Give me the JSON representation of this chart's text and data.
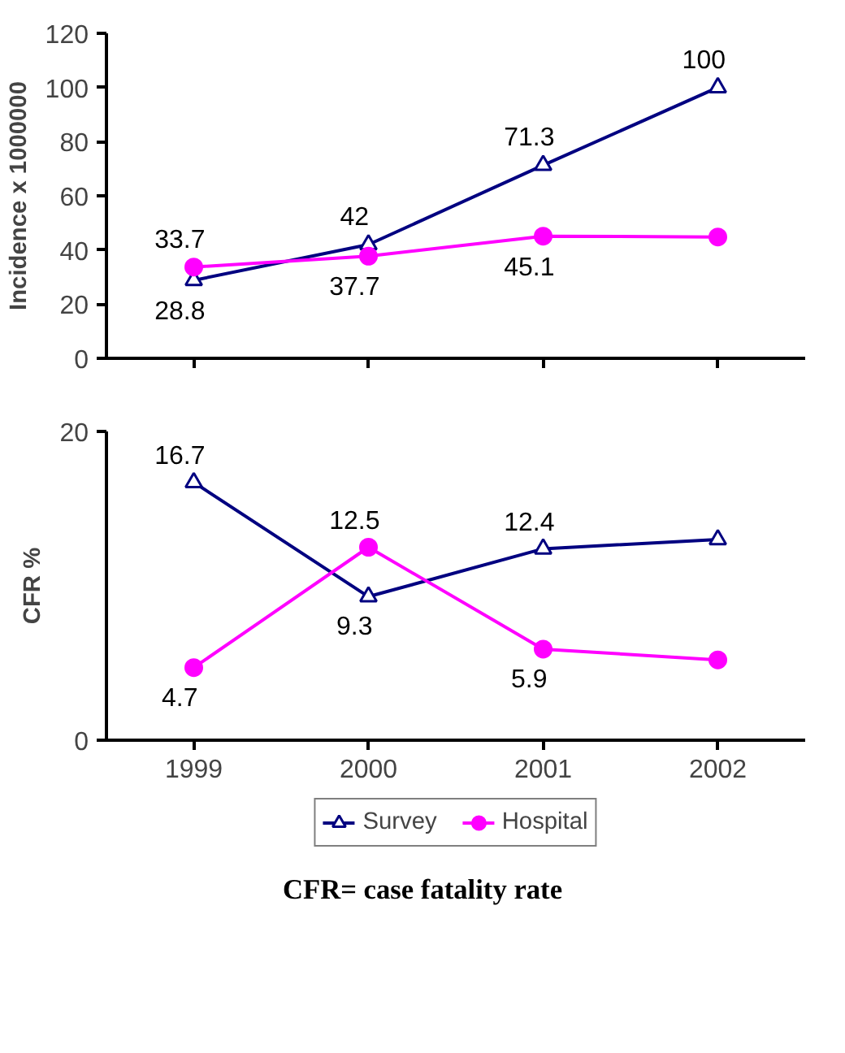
{
  "chart_data": [
    {
      "type": "line",
      "categories": [
        "1999",
        "2000",
        "2001",
        "2002"
      ],
      "ylabel": "Incidence x 1000000",
      "ylim": [
        0,
        120
      ],
      "yticks": [
        0,
        20,
        40,
        60,
        80,
        100,
        120
      ],
      "tick_labels": "y",
      "grid": false,
      "legend": false,
      "series": [
        {
          "color": "#000080",
          "marker": "triangle",
          "values": [
            28.8,
            42,
            71.3,
            100
          ],
          "value_labels": [
            "28.8",
            "42",
            "71.3",
            "100"
          ]
        },
        {
          "color": "#ff00ff",
          "marker": "circle",
          "values": [
            33.7,
            37.7,
            45.1,
            44.8
          ],
          "value_labels": [
            "33.7",
            "37.7",
            "45.1",
            null
          ]
        }
      ]
    },
    {
      "type": "line",
      "categories": [
        "1999",
        "2000",
        "2001",
        "2002"
      ],
      "ylabel": "CFR %",
      "ylim": [
        0,
        20
      ],
      "yticks": [
        0,
        20
      ],
      "grid": false,
      "legend": "bottom",
      "annotations": [
        "CFR= case fatality rate"
      ],
      "series": [
        {
          "name": "Survey",
          "color": "#000080",
          "marker": "triangle",
          "values": [
            16.7,
            9.3,
            12.4,
            13.0
          ],
          "value_labels": [
            "16.7",
            "9.3",
            "12.4",
            null
          ]
        },
        {
          "name": "Hospital",
          "color": "#ff00ff",
          "marker": "circle",
          "values": [
            4.7,
            12.5,
            5.9,
            5.2
          ],
          "value_labels": [
            "4.7",
            "12.5",
            "5.9",
            null
          ]
        }
      ]
    }
  ]
}
